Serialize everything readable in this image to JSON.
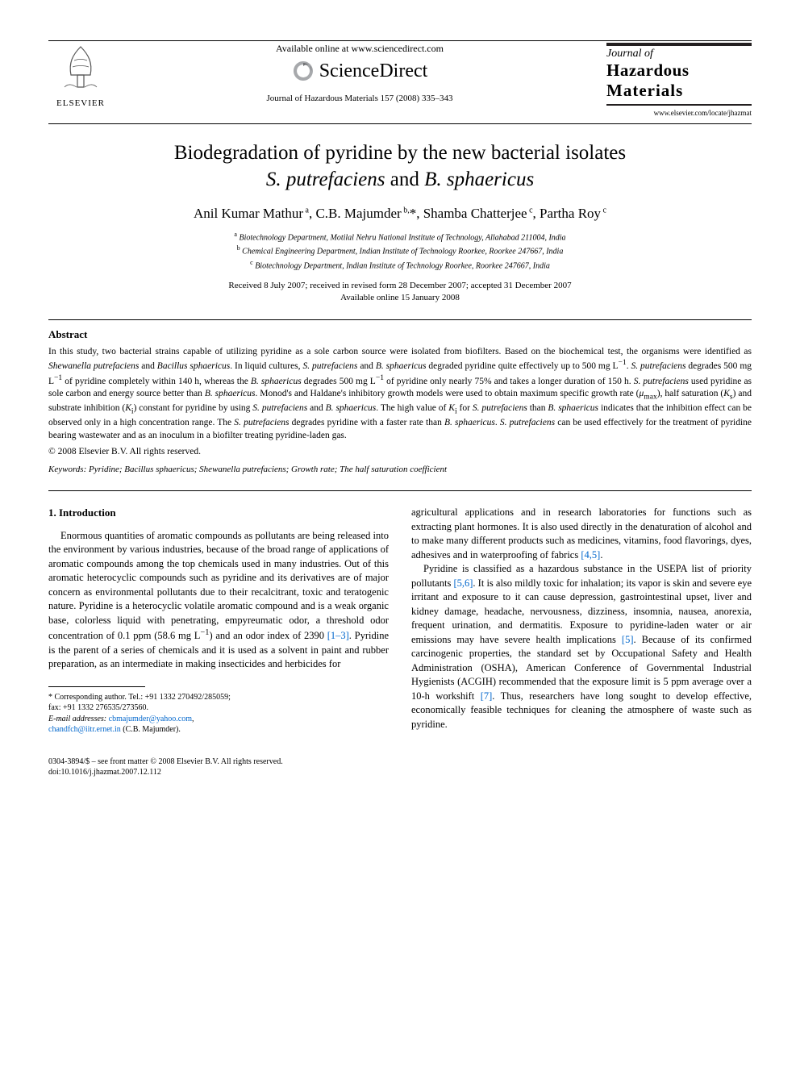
{
  "header": {
    "available_text": "Available online at www.sciencedirect.com",
    "sd_name": "ScienceDirect",
    "elsevier_label": "ELSEVIER",
    "journal_ref": "Journal of Hazardous Materials 157 (2008) 335–343",
    "journal_title_row1": "Journal of",
    "journal_title_row2": "Hazardous",
    "journal_title_row3": "Materials",
    "journal_url": "www.elsevier.com/locate/jhazmat"
  },
  "article": {
    "title_part1": "Biodegradation of pyridine by the new bacterial isolates",
    "title_part2_a": "S. putrefaciens",
    "title_part2_mid": " and ",
    "title_part2_b": "B. sphaericus",
    "authors_html": "Anil Kumar Mathur<sup> a</sup>, C.B. Majumder<sup> b,</sup>*, Shamba Chatterjee<sup> c</sup>, Partha Roy<sup> c</sup>",
    "affiliations": [
      "<sup>a</sup> Biotechnology Department, Motilal Nehru National Institute of Technology, Allahabad 211004, India",
      "<sup>b</sup> Chemical Engineering Department, Indian Institute of Technology Roorkee, Roorkee 247667, India",
      "<sup>c</sup> Biotechnology Department, Indian Institute of Technology Roorkee, Roorkee 247667, India"
    ],
    "dates_line1": "Received 8 July 2007; received in revised form 28 December 2007; accepted 31 December 2007",
    "dates_line2": "Available online 15 January 2008"
  },
  "abstract": {
    "heading": "Abstract",
    "body": "In this study, two bacterial strains capable of utilizing pyridine as a sole carbon source were isolated from biofilters. Based on the biochemical test, the organisms were identified as <i>Shewanella putrefaciens</i> and <i>Bacillus sphaericus</i>. In liquid cultures, <i>S. putrefaciens</i> and <i>B. sphaericus</i> degraded pyridine quite effectively up to 500 mg L<sup>−1</sup>. <i>S. putrefaciens</i> degrades 500 mg L<sup>−1</sup> of pyridine completely within 140 h, whereas the <i>B. sphaericus</i> degrades 500 mg L<sup>−1</sup> of pyridine only nearly 75% and takes a longer duration of 150 h. <i>S. putrefaciens</i> used pyridine as sole carbon and energy source better than <i>B. sphaericus</i>. Monod's and Haldane's inhibitory growth models were used to obtain maximum specific growth rate (<i>μ</i><sub>max</sub>), half saturation (<i>K</i><sub>s</sub>) and substrate inhibition (<i>K</i><sub>i</sub>) constant for pyridine by using <i>S. putrefaciens</i> and <i>B. sphaericus</i>. The high value of <i>K</i><sub>i</sub> for <i>S. putrefaciens</i> than <i>B. sphaericus</i> indicates that the inhibition effect can be observed only in a high concentration range. The <i>S. putrefaciens</i> degrades pyridine with a faster rate than <i>B. sphaericus</i>. <i>S. putrefaciens</i> can be used effectively for the treatment of pyridine bearing wastewater and as an inoculum in a biofilter treating pyridine-laden gas.",
    "copyright": "© 2008 Elsevier B.V. All rights reserved.",
    "keywords_label": "Keywords:",
    "keywords": "Pyridine; Bacillus sphaericus; Shewanella putrefaciens; Growth rate; The half saturation coefficient"
  },
  "body": {
    "section1_heading": "1.  Introduction",
    "col1_para": "Enormous quantities of aromatic compounds as pollutants are being released into the environment by various industries, because of the broad range of applications of aromatic compounds among the top chemicals used in many industries. Out of this aromatic heterocyclic compounds such as pyridine and its derivatives are of major concern as environmental pollutants due to their recalcitrant, toxic and teratogenic nature. Pyridine is a heterocyclic volatile aromatic compound and is a weak organic base, colorless liquid with penetrating, empyreumatic odor, a threshold odor concentration of 0.1 ppm (58.6 mg L<sup>−1</sup>) and an odor index of 2390 <span class=\"ref-link\">[1–3]</span>. Pyridine is the parent of a series of chemicals and it is used as a solvent in paint and rubber preparation, as an intermediate in making insecticides and herbicides for",
    "col2_para1": "agricultural applications and in research laboratories for functions such as extracting plant hormones. It is also used directly in the denaturation of alcohol and to make many different products such as medicines, vitamins, food flavorings, dyes, adhesives and in waterproofing of fabrics <span class=\"ref-link\">[4,5]</span>.",
    "col2_para2": "Pyridine is classified as a hazardous substance in the USEPA list of priority pollutants <span class=\"ref-link\">[5,6]</span>. It is also mildly toxic for inhalation; its vapor is skin and severe eye irritant and exposure to it can cause depression, gastrointestinal upset, liver and kidney damage, headache, nervousness, dizziness, insomnia, nausea, anorexia, frequent urination, and dermatitis. Exposure to pyridine-laden water or air emissions may have severe health implications <span class=\"ref-link\">[5]</span>. Because of its confirmed carcinogenic properties, the standard set by Occupational Safety and Health Administration (OSHA), American Conference of Governmental Industrial Hygienists (ACGIH) recommended that the exposure limit is 5 ppm average over a 10-h workshift <span class=\"ref-link\">[7]</span>. Thus, researchers have long sought to develop effective, economically feasible techniques for cleaning the atmosphere of waste such as pyridine."
  },
  "footnotes": {
    "corr": "* Corresponding author. Tel.: +91 1332 270492/285059;",
    "fax": "fax: +91 1332 276535/273560.",
    "email_label": "E-mail addresses:",
    "email1": "cbmajumder@yahoo.com",
    "email_sep": ",",
    "email2": "chandfch@iitr.ernet.in",
    "email_tail": " (C.B. Majumder)."
  },
  "footer": {
    "line1": "0304-3894/$ – see front matter © 2008 Elsevier B.V. All rights reserved.",
    "line2": "doi:10.1016/j.jhazmat.2007.12.112"
  },
  "colors": {
    "link": "#0066cc",
    "text": "#000000",
    "rule": "#000000",
    "elsevier_orange": "#f58220"
  }
}
